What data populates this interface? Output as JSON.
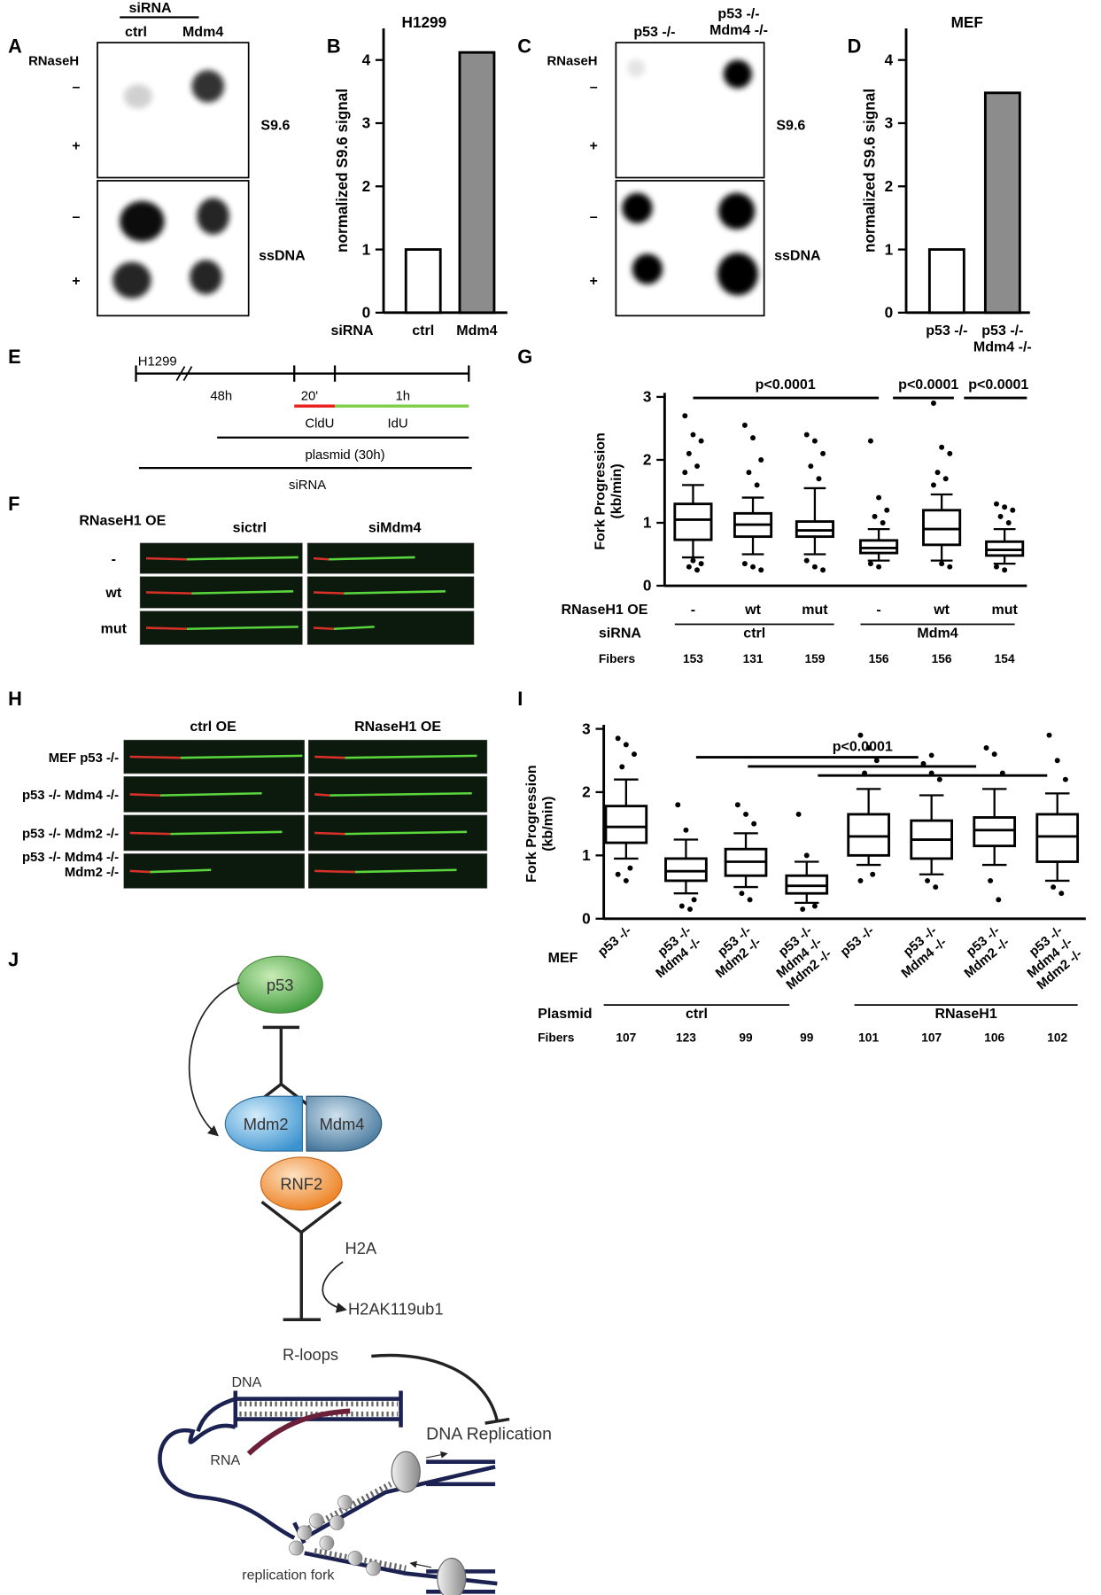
{
  "panel_labels": [
    "A",
    "B",
    "C",
    "D",
    "E",
    "F",
    "G",
    "H",
    "I",
    "J"
  ],
  "panel_a": {
    "header": "siRNA",
    "columns": [
      "ctrl",
      "Mdm4"
    ],
    "treatment": "RNaseH",
    "rows": [
      "–",
      "+",
      "–",
      "+"
    ],
    "blots": [
      "S9.6",
      "ssDNA"
    ]
  },
  "panel_c": {
    "columns": [
      "p53 -/-",
      "p53 -/-\nMdm4 -/-"
    ],
    "treatment": "RNaseH",
    "rows": [
      "–",
      "+",
      "–",
      "+"
    ],
    "blots": [
      "S9.6",
      "ssDNA"
    ]
  },
  "chart_data": [
    {
      "type": "bar",
      "title": "H1299",
      "y_label": "normalized S9.6 signal",
      "x_label": "siRNA",
      "categories": [
        "ctrl",
        "Mdm4"
      ],
      "values": [
        1,
        4.12
      ],
      "colors": [
        "#ffffff",
        "#8c8c8c"
      ],
      "ylim": [
        0,
        4.5
      ],
      "yticks": [
        0,
        1,
        2,
        3,
        4
      ]
    },
    {
      "type": "bar",
      "title": "MEF",
      "y_label": "normalized S9.6 signal",
      "categories": [
        "p53 -/-",
        "p53 -/-\nMdm4 -/-"
      ],
      "values": [
        1,
        3.48
      ],
      "colors": [
        "#ffffff",
        "#8c8c8c"
      ],
      "ylim": [
        0,
        4.5
      ],
      "yticks": [
        0,
        1,
        2,
        3,
        4
      ]
    },
    {
      "type": "box",
      "y_label": "Fork Progression\n(kb/min)",
      "category_label": "RNaseH1  OE",
      "categories": [
        "-",
        "wt",
        "mut",
        "-",
        "wt",
        "mut"
      ],
      "group_label": "siRNA",
      "groups": [
        "ctrl",
        "Mdm4"
      ],
      "count_label": "Fibers",
      "counts": [
        153,
        131,
        159,
        156,
        156,
        154
      ],
      "annotations": [
        "p<0.0001",
        "p<0.0001",
        "p<0.0001"
      ],
      "ylim": [
        0,
        3
      ],
      "yticks": [
        0,
        1,
        2,
        3
      ],
      "boxes": [
        {
          "whisker_low": 0.45,
          "q1": 0.73,
          "median": 1.05,
          "q3": 1.3,
          "whisker_high": 1.6,
          "outliers": [
            2.7,
            2.4,
            2.3,
            2.1,
            1.9,
            1.8,
            0.4,
            0.35,
            0.3,
            0.25
          ]
        },
        {
          "whisker_low": 0.5,
          "q1": 0.78,
          "median": 0.97,
          "q3": 1.15,
          "whisker_high": 1.4,
          "outliers": [
            2.55,
            2.35,
            2.0,
            1.8,
            1.6,
            0.35,
            0.3,
            0.25
          ]
        },
        {
          "whisker_low": 0.5,
          "q1": 0.78,
          "median": 0.88,
          "q3": 1.02,
          "whisker_high": 1.55,
          "outliers": [
            2.4,
            2.3,
            2.1,
            1.9,
            1.7,
            0.4,
            0.3,
            0.25
          ]
        },
        {
          "whisker_low": 0.4,
          "q1": 0.52,
          "median": 0.6,
          "q3": 0.72,
          "whisker_high": 0.9,
          "outliers": [
            2.3,
            1.4,
            1.2,
            1.1,
            1.0,
            0.35,
            0.3
          ]
        },
        {
          "whisker_low": 0.4,
          "q1": 0.65,
          "median": 0.9,
          "q3": 1.2,
          "whisker_high": 1.45,
          "outliers": [
            2.9,
            2.2,
            2.1,
            1.8,
            1.7,
            1.6,
            0.35,
            0.3
          ]
        },
        {
          "whisker_low": 0.35,
          "q1": 0.48,
          "median": 0.57,
          "q3": 0.7,
          "whisker_high": 0.9,
          "outliers": [
            1.3,
            1.25,
            1.2,
            1.1,
            1.0,
            0.3,
            0.25
          ]
        }
      ]
    },
    {
      "type": "box",
      "y_label": "Fork Progression\n(kb/min)",
      "category_label": "MEF",
      "categories": [
        "p53 -/-",
        "p53 -/-\nMdm4 -/-",
        "p53 -/-\nMdm2 -/-",
        "p53 -/-\nMdm4 -/-\nMdm2 -/-",
        "p53 -/-",
        "p53 -/-\nMdm4 -/-",
        "p53 -/-\nMdm2 -/-",
        "p53 -/-\nMdm4 -/-\nMdm2 -/-"
      ],
      "group_label": "Plasmid",
      "groups": [
        "ctrl",
        "RNaseH1"
      ],
      "count_label": "Fibers",
      "counts": [
        107,
        123,
        99,
        99,
        101,
        107,
        106,
        102
      ],
      "annotations": [
        "p<0.0001"
      ],
      "ylim": [
        0,
        3
      ],
      "yticks": [
        0,
        1,
        2,
        3
      ],
      "boxes": [
        {
          "whisker_low": 0.95,
          "q1": 1.2,
          "median": 1.45,
          "q3": 1.78,
          "whisker_high": 2.2,
          "outliers": [
            2.85,
            2.75,
            2.6,
            2.4,
            0.8,
            0.7,
            0.6
          ]
        },
        {
          "whisker_low": 0.4,
          "q1": 0.6,
          "median": 0.75,
          "q3": 0.95,
          "whisker_high": 1.25,
          "outliers": [
            1.8,
            1.4,
            0.3,
            0.2,
            0.15
          ]
        },
        {
          "whisker_low": 0.5,
          "q1": 0.68,
          "median": 0.9,
          "q3": 1.1,
          "whisker_high": 1.35,
          "outliers": [
            1.8,
            1.65,
            1.5,
            0.4,
            0.3
          ]
        },
        {
          "whisker_low": 0.25,
          "q1": 0.4,
          "median": 0.52,
          "q3": 0.68,
          "whisker_high": 0.9,
          "outliers": [
            1.65,
            1.0,
            0.2,
            0.15
          ]
        },
        {
          "whisker_low": 0.85,
          "q1": 1.0,
          "median": 1.3,
          "q3": 1.65,
          "whisker_high": 2.05,
          "outliers": [
            2.9,
            2.7,
            2.5,
            2.3,
            0.7,
            0.6
          ]
        },
        {
          "whisker_low": 0.7,
          "q1": 0.95,
          "median": 1.25,
          "q3": 1.55,
          "whisker_high": 1.95,
          "outliers": [
            2.45,
            2.3,
            2.2,
            0.6,
            0.5
          ]
        },
        {
          "whisker_low": 0.85,
          "q1": 1.15,
          "median": 1.4,
          "q3": 1.6,
          "whisker_high": 2.05,
          "outliers": [
            2.7,
            2.6,
            2.3,
            0.6,
            0.3
          ]
        },
        {
          "whisker_low": 0.6,
          "q1": 0.9,
          "median": 1.3,
          "q3": 1.65,
          "whisker_high": 1.98,
          "outliers": [
            2.9,
            2.5,
            2.2,
            0.5,
            0.4
          ]
        }
      ]
    }
  ],
  "panel_e": {
    "cell_line": "H1299",
    "durations": [
      "48h",
      "20'",
      "1h"
    ],
    "labels": [
      "CldU",
      "IdU"
    ],
    "treatments": [
      "plasmid (30h)",
      "siRNA"
    ]
  },
  "panel_f": {
    "row_header": "RNaseH1 OE",
    "columns": [
      "sictrl",
      "siMdm4"
    ],
    "rows": [
      "-",
      "wt",
      "mut"
    ]
  },
  "panel_h": {
    "columns": [
      "ctrl OE",
      "RNaseH1 OE"
    ],
    "rows": [
      "MEF p53 -/-",
      "p53 -/- Mdm4 -/-",
      "p53 -/- Mdm2 -/-",
      "p53 -/- Mdm4 -/-\nMdm2 -/-"
    ]
  },
  "panel_j": {
    "p53": "p53",
    "mdm2": "Mdm2",
    "mdm4": "Mdm4",
    "rnf2": "RNF2",
    "h2a": "H2A",
    "h2aub": "H2AK119ub1",
    "rloops": "R-loops",
    "dna": "DNA",
    "rna": "RNA",
    "replication": "DNA Replication",
    "fork": "replication fork"
  }
}
